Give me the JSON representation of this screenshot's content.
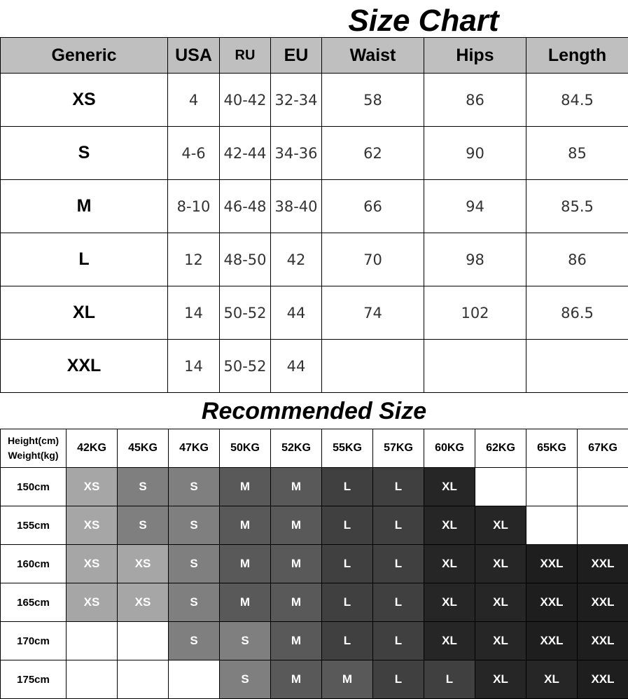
{
  "size_chart": {
    "title": "Size Chart",
    "headers": [
      "Generic",
      "USA",
      "RU",
      "EU",
      "Waist",
      "Hips",
      "Length"
    ],
    "header_bg": "#bfbfbf",
    "rows": [
      [
        "XS",
        "4",
        "40-42",
        "32-34",
        "58",
        "86",
        "84.5"
      ],
      [
        "S",
        "4-6",
        "42-44",
        "34-36",
        "62",
        "90",
        "85"
      ],
      [
        "M",
        "8-10",
        "46-48",
        "38-40",
        "66",
        "94",
        "85.5"
      ],
      [
        "L",
        "12",
        "48-50",
        "42",
        "70",
        "98",
        "86"
      ],
      [
        "XL",
        "14",
        "50-52",
        "44",
        "74",
        "102",
        "86.5"
      ],
      [
        "XXL",
        "14",
        "50-52",
        "44",
        "",
        "",
        ""
      ]
    ]
  },
  "recommended": {
    "title": "Recommended Size",
    "corner_line1": "Height(cm)",
    "corner_line2": "Weight(kg)",
    "weights": [
      "42KG",
      "45KG",
      "47KG",
      "50KG",
      "52KG",
      "55KG",
      "57KG",
      "60KG",
      "62KG",
      "65KG",
      "67KG"
    ],
    "rows": [
      {
        "height": "150cm",
        "sizes": [
          "XS",
          "S",
          "S",
          "M",
          "M",
          "L",
          "L",
          "XL",
          "",
          "",
          ""
        ]
      },
      {
        "height": "155cm",
        "sizes": [
          "XS",
          "S",
          "S",
          "M",
          "M",
          "L",
          "L",
          "XL",
          "XL",
          "",
          ""
        ]
      },
      {
        "height": "160cm",
        "sizes": [
          "XS",
          "XS",
          "S",
          "M",
          "M",
          "L",
          "L",
          "XL",
          "XL",
          "XXL",
          "XXL"
        ]
      },
      {
        "height": "165cm",
        "sizes": [
          "XS",
          "XS",
          "S",
          "M",
          "M",
          "L",
          "L",
          "XL",
          "XL",
          "XXL",
          "XXL"
        ]
      },
      {
        "height": "170cm",
        "sizes": [
          "",
          "",
          "S",
          "S",
          "M",
          "L",
          "L",
          "XL",
          "XL",
          "XXL",
          "XXL"
        ]
      },
      {
        "height": "175cm",
        "sizes": [
          "",
          "",
          "",
          "S",
          "M",
          "M",
          "L",
          "L",
          "XL",
          "XL",
          "XXL"
        ]
      }
    ],
    "colors": {
      "XS": "#a6a6a6",
      "S": "#7f7f7f",
      "M": "#595959",
      "L": "#404040",
      "XL": "#262626",
      "XXL": "#1e1e1e"
    }
  }
}
